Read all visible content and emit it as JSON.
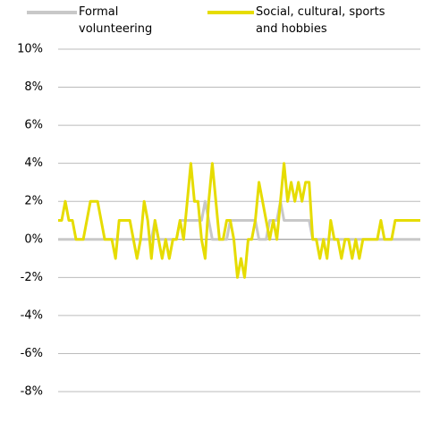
{
  "chart_data": {
    "type": "line",
    "ylim": [
      -8,
      10
    ],
    "yticks": [
      {
        "value": -8,
        "label": "-8%"
      },
      {
        "value": -6,
        "label": "-6%"
      },
      {
        "value": -4,
        "label": "-4%"
      },
      {
        "value": -2,
        "label": "-2%"
      },
      {
        "value": 0,
        "label": "0%"
      },
      {
        "value": 2,
        "label": "2%"
      },
      {
        "value": 4,
        "label": "4%"
      },
      {
        "value": 6,
        "label": "6%"
      },
      {
        "value": 8,
        "label": "8%"
      },
      {
        "value": 10,
        "label": "10%"
      }
    ],
    "grid": true,
    "series": [
      {
        "name": "Formal volunteering",
        "color": "#c8c8c8",
        "values": [
          0,
          0,
          0,
          0,
          0,
          0,
          0,
          0,
          0,
          0,
          0,
          0,
          0,
          0,
          0,
          0,
          0,
          0,
          0,
          0,
          0,
          0,
          0,
          0,
          0,
          0,
          0,
          1,
          0,
          0,
          0,
          0,
          0,
          0,
          1,
          1,
          1,
          1,
          1,
          1,
          1,
          2,
          1,
          0,
          0,
          0,
          0,
          0,
          1,
          1,
          1,
          1,
          1,
          1,
          1,
          1,
          0,
          0,
          0,
          1,
          1,
          1,
          2,
          1,
          1,
          1,
          1,
          1,
          1,
          1,
          1,
          0,
          0,
          0,
          0,
          0,
          0,
          0,
          0,
          0,
          0,
          0,
          0,
          0,
          0,
          0,
          0,
          0,
          0,
          0,
          0,
          0,
          0,
          0,
          0,
          0,
          0,
          0,
          0,
          0,
          0,
          0
        ]
      },
      {
        "name": "Social, cultural, sports and hobbies",
        "color": "#e6dc00",
        "values": [
          1,
          1,
          2,
          1,
          1,
          0,
          0,
          0,
          1,
          2,
          2,
          2,
          1,
          0,
          0,
          0,
          -1,
          1,
          1,
          1,
          1,
          0,
          -1,
          0,
          2,
          1,
          -1,
          1,
          0,
          -1,
          0,
          -1,
          0,
          0,
          1,
          0,
          2,
          4,
          2,
          2,
          0,
          -1,
          2,
          4,
          2,
          0,
          0,
          1,
          1,
          0,
          -2,
          -1,
          -2,
          0,
          0,
          1,
          3,
          2,
          1,
          0,
          1,
          0,
          2,
          4,
          2,
          3,
          2,
          3,
          2,
          3,
          3,
          0,
          0,
          -1,
          0,
          -1,
          1,
          0,
          0,
          -1,
          0,
          0,
          -1,
          0,
          -1,
          0,
          0,
          0,
          0,
          0,
          1,
          0,
          0,
          0,
          1,
          1,
          1,
          1,
          1,
          1,
          1,
          1
        ]
      }
    ]
  }
}
